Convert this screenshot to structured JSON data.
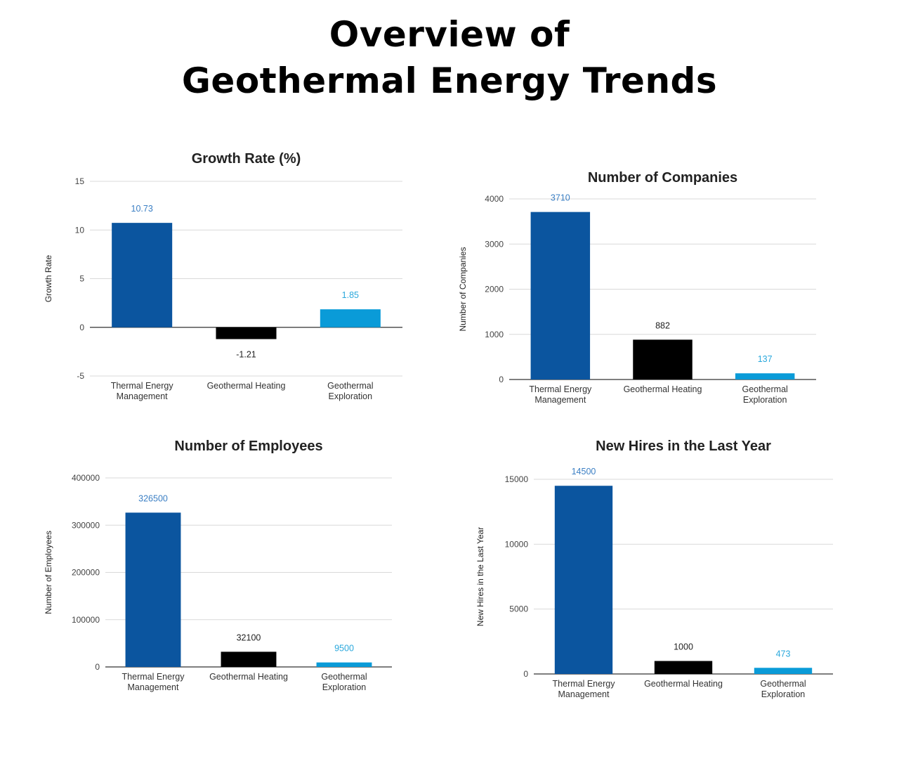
{
  "page": {
    "title_line1": "Overview of",
    "title_line2": "Geothermal Energy Trends"
  },
  "colors": {
    "thermal_energy_management": "#0b559f",
    "geothermal_heating": "#000000",
    "geothermal_exploration": "#0a9bd8",
    "gridline": "#d9d9d9",
    "axis": "#333333",
    "tick_text": "#444444"
  },
  "chart_data": [
    {
      "type": "bar",
      "title": "Growth Rate (%)",
      "xlabel": "",
      "ylabel": "Growth Rate",
      "categories": [
        "Thermal Energy Management",
        "Geothermal Heating",
        "Geothermal Exploration"
      ],
      "category_lines": [
        [
          "Thermal Energy",
          "Management"
        ],
        [
          "Geothermal Heating"
        ],
        [
          "Geothermal",
          "Exploration"
        ]
      ],
      "values": [
        10.73,
        -1.21,
        1.85
      ],
      "data_labels": [
        "10.73",
        "-1.21",
        "1.85"
      ],
      "ylim": [
        -5,
        15
      ],
      "yticks": [
        -5,
        0,
        5,
        10,
        15
      ],
      "grid": true,
      "legend": "none"
    },
    {
      "type": "bar",
      "title": "Number of Companies",
      "xlabel": "",
      "ylabel": "Number of Companies",
      "categories": [
        "Thermal Energy Management",
        "Geothermal Heating",
        "Geothermal Exploration"
      ],
      "category_lines": [
        [
          "Thermal Energy",
          "Management"
        ],
        [
          "Geothermal Heating"
        ],
        [
          "Geothermal",
          "Exploration"
        ]
      ],
      "values": [
        3710,
        882,
        137
      ],
      "data_labels": [
        "3710",
        "882",
        "137"
      ],
      "ylim": [
        0,
        4000
      ],
      "yticks": [
        0,
        1000,
        2000,
        3000,
        4000
      ],
      "grid": true,
      "legend": "none"
    },
    {
      "type": "bar",
      "title": "Number of Employees",
      "xlabel": "",
      "ylabel": "Number of Employees",
      "categories": [
        "Thermal Energy Management",
        "Geothermal Heating",
        "Geothermal Exploration"
      ],
      "category_lines": [
        [
          "Thermal Energy",
          "Management"
        ],
        [
          "Geothermal Heating"
        ],
        [
          "Geothermal",
          "Exploration"
        ]
      ],
      "values": [
        326500,
        32100,
        9500
      ],
      "data_labels": [
        "326500",
        "32100",
        "9500"
      ],
      "ylim": [
        0,
        400000
      ],
      "yticks": [
        0,
        100000,
        200000,
        300000,
        400000
      ],
      "grid": true,
      "legend": "none"
    },
    {
      "type": "bar",
      "title": "New Hires in the Last Year",
      "xlabel": "",
      "ylabel": "New Hires in the Last Year",
      "categories": [
        "Thermal Energy Management",
        "Geothermal Heating",
        "Geothermal Exploration"
      ],
      "category_lines": [
        [
          "Thermal Energy",
          "Management"
        ],
        [
          "Geothermal Heating"
        ],
        [
          "Geothermal",
          "Exploration"
        ]
      ],
      "values": [
        14500,
        1000,
        473
      ],
      "data_labels": [
        "14500",
        "1000",
        "473"
      ],
      "ylim": [
        0,
        15000
      ],
      "yticks": [
        0,
        5000,
        10000,
        15000
      ],
      "grid": true,
      "legend": "none"
    }
  ]
}
